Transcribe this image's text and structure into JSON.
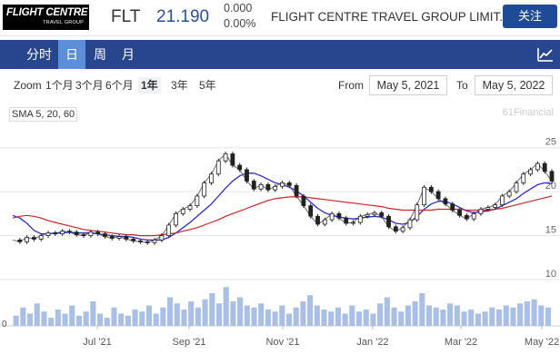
{
  "header": {
    "logo": {
      "line1": "FLIGHT CENTRE",
      "line2": "TRAVEL GROUP"
    },
    "ticker": "FLT",
    "price": "21.190",
    "change": "0.000",
    "change_pct": "0.00%",
    "company": "FLIGHT CENTRE TRAVEL GROUP LIMIT...",
    "follow_label": "关注"
  },
  "tabs": [
    {
      "label": "分时",
      "active": false
    },
    {
      "label": "日",
      "active": true
    },
    {
      "label": "周",
      "active": false
    },
    {
      "label": "月",
      "active": false
    }
  ],
  "chart_icon": "line-chart-icon",
  "zoom": {
    "label": "Zoom",
    "options": [
      {
        "label": "1个月",
        "selected": false
      },
      {
        "label": "3个月",
        "selected": false
      },
      {
        "label": "6个月",
        "selected": false
      },
      {
        "label": "1年",
        "selected": true
      },
      {
        "label": "3年",
        "selected": false
      },
      {
        "label": "5年",
        "selected": false
      }
    ],
    "from_label": "From",
    "from_value": "May 5, 2021",
    "to_label": "To",
    "to_value": "May 5, 2022"
  },
  "indicator_label": "SMA 5, 20, 60",
  "credit": "61Financial",
  "colors": {
    "up": "#222222",
    "sma5": "#777777",
    "sma20": "#2b2bc8",
    "sma60": "#c62828",
    "volume": "#a9bfe6",
    "accent": "#28468d"
  },
  "chart_data": {
    "type": "line",
    "x_axis": {
      "ticks": [
        "Jul '21",
        "Sep '21",
        "Nov '21",
        "Jan '22",
        "Mar '22",
        "May '22"
      ]
    },
    "y_axis": {
      "ticks": [
        10,
        15,
        20,
        25
      ],
      "range": [
        10,
        26
      ]
    },
    "volume_axis": {
      "ticks": [
        0
      ]
    },
    "series": [
      {
        "values": [
          14.5,
          14.3,
          14.8,
          14.6,
          15.0,
          15.3,
          15.2,
          15.5,
          15.4,
          15.1,
          15.0,
          15.4,
          15.2,
          14.9,
          14.7,
          14.9,
          14.6,
          14.4,
          14.3,
          14.2,
          14.5,
          15.0,
          16.2,
          17.5,
          18.0,
          18.4,
          19.5,
          21.0,
          22.0,
          23.5,
          24.3,
          23.0,
          22.5,
          21.2,
          20.3,
          20.8,
          20.2,
          20.6,
          21.0,
          20.7,
          19.5,
          18.4,
          17.2,
          16.3,
          16.8,
          17.5,
          17.0,
          16.4,
          16.5,
          17.2,
          17.4,
          17.6,
          17.2,
          16.0,
          15.5,
          15.9,
          16.8,
          18.5,
          20.5,
          20.0,
          19.2,
          18.6,
          17.9,
          17.3,
          16.9,
          17.5,
          18.0,
          18.2,
          18.5,
          19.5,
          20.0,
          21.0,
          22.0,
          22.5,
          23.2,
          22.3,
          21.2
        ]
      },
      {
        "values": [
          17.3,
          17.0,
          16.4,
          15.6,
          15.2,
          15.2,
          15.3,
          15.3,
          15.4,
          15.3,
          15.3,
          15.3,
          15.2,
          15.1,
          15.0,
          14.9,
          14.9,
          14.8,
          14.6,
          14.5,
          14.5,
          14.5,
          14.8,
          15.3,
          15.9,
          16.5,
          17.2,
          17.9,
          18.6,
          19.5,
          20.4,
          21.2,
          21.8,
          22.1,
          22.1,
          21.8,
          21.4,
          21.0,
          20.8,
          20.5,
          20.1,
          19.5,
          18.8,
          18.1,
          17.6,
          17.3,
          17.1,
          17.0,
          16.9,
          17.0,
          17.1,
          17.2,
          17.1,
          16.8,
          16.4,
          16.3,
          16.5,
          17.2,
          18.0,
          18.6,
          18.9,
          18.9,
          18.6,
          18.2,
          17.8,
          17.6,
          17.7,
          17.8,
          18.0,
          18.4,
          18.8,
          19.2,
          19.8,
          20.3,
          20.8,
          21.0,
          20.9
        ]
      },
      {
        "values": [
          17.0,
          17.2,
          17.3,
          17.2,
          17.0,
          16.7,
          16.5,
          16.3,
          16.1,
          15.9,
          15.7,
          15.6,
          15.5,
          15.4,
          15.3,
          15.2,
          15.1,
          15.1,
          15.0,
          15.0,
          15.0,
          15.1,
          15.2,
          15.3,
          15.5,
          15.7,
          15.9,
          16.2,
          16.5,
          16.8,
          17.2,
          17.5,
          17.8,
          18.1,
          18.4,
          18.7,
          19.0,
          19.2,
          19.3,
          19.4,
          19.4,
          19.4,
          19.3,
          19.2,
          19.1,
          19.0,
          18.9,
          18.8,
          18.7,
          18.6,
          18.5,
          18.4,
          18.3,
          18.1,
          18.0,
          17.9,
          17.9,
          17.9,
          17.9,
          17.9,
          18.0,
          18.0,
          18.0,
          18.0,
          17.9,
          17.9,
          17.9,
          17.9,
          18.0,
          18.1,
          18.3,
          18.5,
          18.7,
          18.9,
          19.1,
          19.3,
          19.5
        ]
      }
    ],
    "volume_relative": [
      0.25,
      0.45,
      0.3,
      0.55,
      0.35,
      0.2,
      0.4,
      0.3,
      0.5,
      0.25,
      0.35,
      0.6,
      0.3,
      0.2,
      0.45,
      0.3,
      0.25,
      0.4,
      0.35,
      0.5,
      0.3,
      0.45,
      0.7,
      0.55,
      0.4,
      0.6,
      0.45,
      0.65,
      0.8,
      0.55,
      0.95,
      0.6,
      0.7,
      0.5,
      0.45,
      0.55,
      0.4,
      0.35,
      0.5,
      0.3,
      0.45,
      0.6,
      0.75,
      0.5,
      0.4,
      0.35,
      0.45,
      0.3,
      0.5,
      0.35,
      0.4,
      0.3,
      0.55,
      0.7,
      0.45,
      0.35,
      0.5,
      0.6,
      0.8,
      0.5,
      0.45,
      0.4,
      0.55,
      0.5,
      0.35,
      0.4,
      0.3,
      0.35,
      0.45,
      0.4,
      0.5,
      0.45,
      0.55,
      0.6,
      0.65,
      0.5,
      0.45
    ],
    "ylim": [
      10,
      26
    ]
  }
}
